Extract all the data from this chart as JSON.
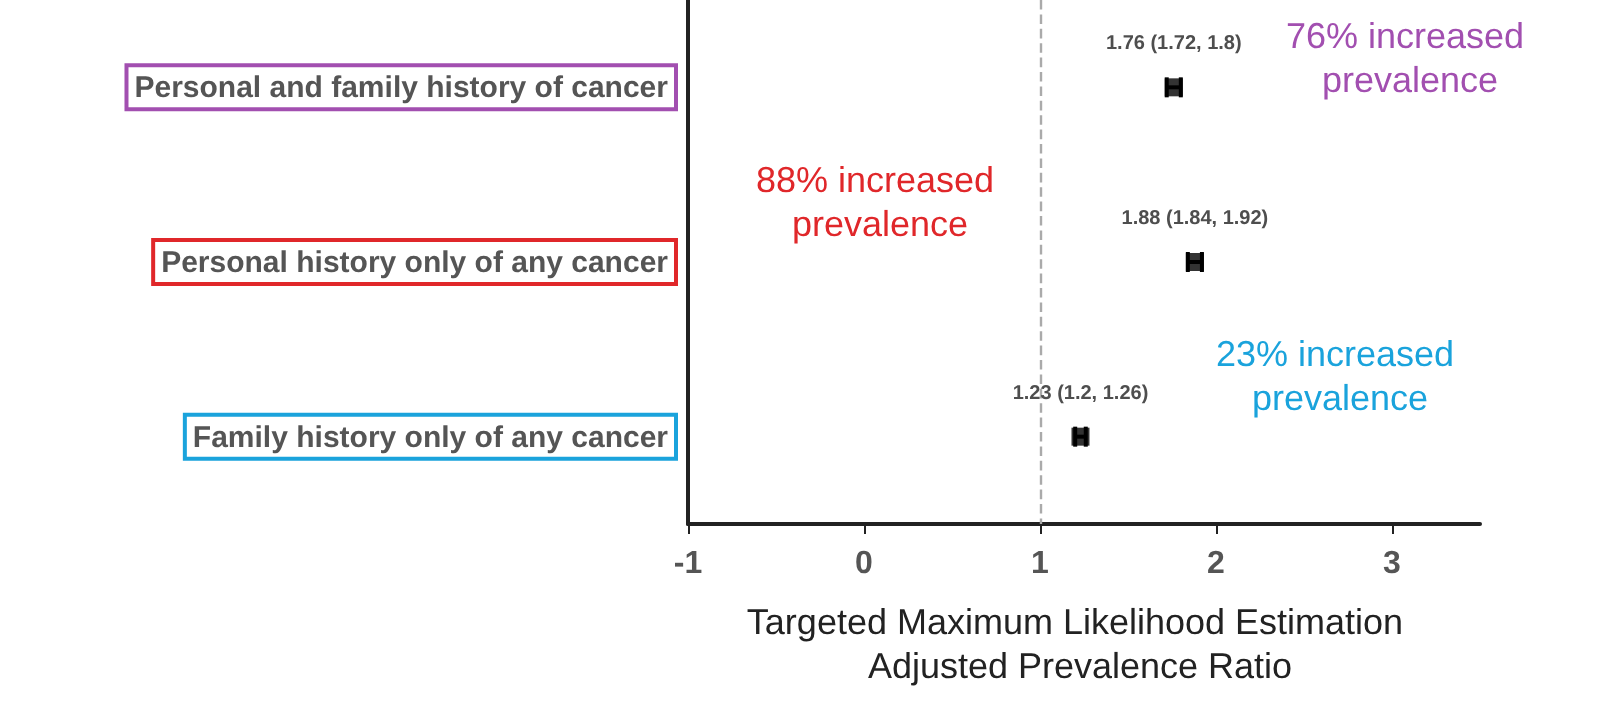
{
  "chart_data": {
    "type": "scatter",
    "xlabel": "Targeted Maximum Likelihood Estimation Adjusted Prevalence Ratio",
    "categories": [
      "Personal and family history of cancer",
      "Personal history only of any cancer",
      "Family history only of any cancer"
    ],
    "series": [
      {
        "color": "#000000",
        "values": [
          1.76,
          1.88,
          1.23
        ],
        "errors": [
          [
            1.72,
            1.8
          ],
          [
            1.84,
            1.92
          ],
          [
            1.2,
            1.26
          ]
        ],
        "value_labels": [
          "1.76 (1.72, 1.8)",
          "1.88 (1.84, 1.92)",
          "1.23 (1.2, 1.26)"
        ]
      }
    ],
    "orientation": "horizontal",
    "marker": "square",
    "xlim": [
      -1,
      3.5
    ],
    "xticks": [
      -1,
      0,
      1,
      2,
      3
    ],
    "grid": false,
    "ref_lines": [
      {
        "axis": "x",
        "value": 1,
        "color": "#aaaaaa",
        "line_style": "dashed"
      }
    ],
    "annotations": [
      "76% increased prevalence",
      "88% increased prevalence",
      "23% increased prevalence"
    ]
  }
}
